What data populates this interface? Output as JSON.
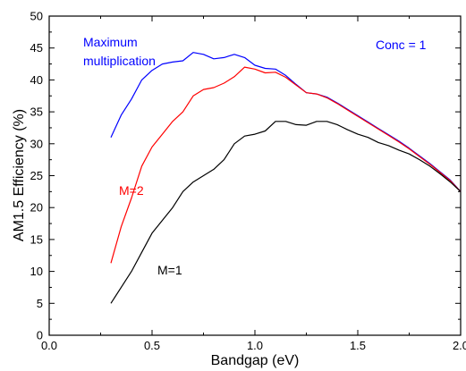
{
  "chart_data": {
    "type": "line",
    "xlabel": "Bandgap (eV)",
    "ylabel": "AM1.5 Efficiency (%)",
    "xlim": [
      0.0,
      2.0
    ],
    "ylim": [
      0,
      50
    ],
    "x_ticks": [
      0.0,
      0.5,
      1.0,
      1.5,
      2.0
    ],
    "x_tick_labels": [
      "0.0",
      "0.5",
      "1.0",
      "1.5",
      "2.0"
    ],
    "y_ticks": [
      0,
      5,
      10,
      15,
      20,
      25,
      30,
      35,
      40,
      45,
      50
    ],
    "y_tick_labels": [
      "0",
      "5",
      "10",
      "15",
      "20",
      "25",
      "30",
      "35",
      "40",
      "45",
      "50"
    ],
    "grid": false,
    "series": [
      {
        "name": "Maximum multiplication",
        "color": "#0000ff",
        "x": [
          0.3,
          0.35,
          0.4,
          0.45,
          0.5,
          0.55,
          0.6,
          0.65,
          0.7,
          0.75,
          0.8,
          0.85,
          0.9,
          0.95,
          1.0,
          1.05,
          1.1,
          1.15,
          1.2,
          1.25,
          1.3,
          1.35,
          1.4,
          1.45,
          1.5,
          1.55,
          1.6,
          1.65,
          1.7,
          1.75,
          1.8,
          1.85,
          1.9,
          1.95,
          2.0
        ],
        "y": [
          31.0,
          34.5,
          37.0,
          40.0,
          41.5,
          42.5,
          42.8,
          43.0,
          44.3,
          44.0,
          43.3,
          43.5,
          44.0,
          43.5,
          42.3,
          41.8,
          41.7,
          40.7,
          39.3,
          38.0,
          37.8,
          37.3,
          36.4,
          35.4,
          34.4,
          33.4,
          32.4,
          31.4,
          30.4,
          29.3,
          28.1,
          26.9,
          25.6,
          24.3,
          22.5
        ]
      },
      {
        "name": "M=2",
        "color": "#ff0000",
        "x": [
          0.3,
          0.35,
          0.4,
          0.45,
          0.5,
          0.55,
          0.6,
          0.65,
          0.7,
          0.75,
          0.8,
          0.85,
          0.9,
          0.95,
          1.0,
          1.05,
          1.1,
          1.15,
          1.2,
          1.25,
          1.3,
          1.35,
          1.4,
          1.45,
          1.5,
          1.55,
          1.6,
          1.65,
          1.7,
          1.75,
          1.8,
          1.85,
          1.9,
          1.95,
          2.0
        ],
        "y": [
          11.3,
          17.0,
          21.5,
          26.5,
          29.5,
          31.5,
          33.5,
          35.0,
          37.5,
          38.5,
          38.8,
          39.5,
          40.5,
          42.0,
          41.7,
          41.1,
          41.2,
          40.4,
          39.2,
          38.0,
          37.8,
          37.2,
          36.3,
          35.3,
          34.3,
          33.3,
          32.3,
          31.3,
          30.3,
          29.2,
          28.0,
          26.8,
          25.5,
          24.2,
          22.5
        ]
      },
      {
        "name": "M=1",
        "color": "#000000",
        "x": [
          0.3,
          0.35,
          0.4,
          0.45,
          0.5,
          0.55,
          0.6,
          0.65,
          0.7,
          0.75,
          0.8,
          0.85,
          0.9,
          0.95,
          1.0,
          1.05,
          1.1,
          1.15,
          1.2,
          1.25,
          1.3,
          1.35,
          1.4,
          1.45,
          1.5,
          1.55,
          1.6,
          1.65,
          1.7,
          1.75,
          1.8,
          1.85,
          1.9,
          1.95,
          2.0
        ],
        "y": [
          5.0,
          7.5,
          10.0,
          13.0,
          16.0,
          18.0,
          20.0,
          22.5,
          24.0,
          25.0,
          26.0,
          27.5,
          30.0,
          31.2,
          31.5,
          32.0,
          33.5,
          33.5,
          33.0,
          32.9,
          33.5,
          33.5,
          33.0,
          32.2,
          31.5,
          31.0,
          30.2,
          29.7,
          29.0,
          28.4,
          27.5,
          26.5,
          25.3,
          24.0,
          22.5
        ]
      }
    ],
    "annotations": [
      {
        "text": "Maximum",
        "color": "#0000ff"
      },
      {
        "text": "multiplication",
        "color": "#0000ff"
      },
      {
        "text": "Conc = 1",
        "color": "#0000ff"
      },
      {
        "text": "M=2",
        "color": "#ff0000"
      },
      {
        "text": "M=1",
        "color": "#000000"
      }
    ]
  }
}
